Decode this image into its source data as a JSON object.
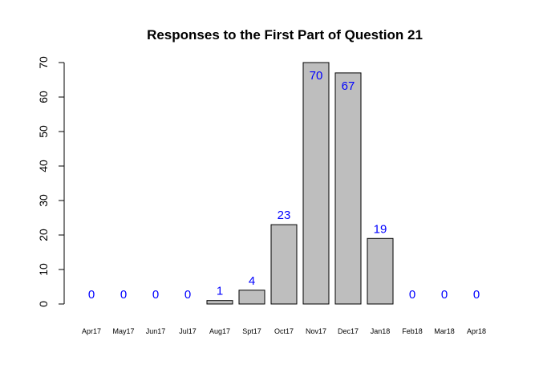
{
  "chart_data": {
    "type": "bar",
    "title": "Responses to the First Part of Question 21",
    "xlabel": "",
    "ylabel": "",
    "categories": [
      "Apr17",
      "May17",
      "Jun17",
      "Jul17",
      "Aug17",
      "Spt17",
      "Oct17",
      "Nov17",
      "Dec17",
      "Jan18",
      "Feb18",
      "Mar18",
      "Apr18"
    ],
    "values": [
      0,
      0,
      0,
      0,
      1,
      4,
      23,
      70,
      67,
      19,
      0,
      0,
      0
    ],
    "data_labels": [
      "0",
      "0",
      "0",
      "0",
      "1",
      "4",
      "23",
      "70",
      "67",
      "19",
      "0",
      "0",
      "0"
    ],
    "ylim": [
      0,
      70
    ],
    "yticks": [
      0,
      10,
      20,
      30,
      40,
      50,
      60,
      70
    ],
    "ytick_labels": [
      "0",
      "10",
      "20",
      "30",
      "40",
      "50",
      "60",
      "70"
    ],
    "grid": false,
    "legend": "none",
    "bar_color": "#bebebe",
    "label_color": "#0000ff"
  }
}
